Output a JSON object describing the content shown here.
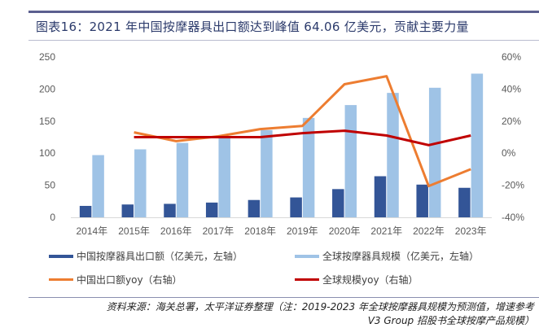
{
  "title": "图表16：2021 年中国按摩器具出口额达到峰值 64.06 亿美元，贡献主要力量",
  "chart_data": {
    "type": "bar+line",
    "title": "图表16：2021 年中国按摩器具出口额达到峰值 64.06 亿美元，贡献主要力量",
    "categories": [
      "2014年",
      "2015年",
      "2016年",
      "2017年",
      "2018年",
      "2019年",
      "2020年",
      "2021年",
      "2022年",
      "2023年"
    ],
    "left_axis": {
      "ylim": [
        0,
        250
      ],
      "ticks": [
        "0",
        "50",
        "100",
        "150",
        "200",
        "250"
      ]
    },
    "right_axis": {
      "ylim": [
        -40,
        60
      ],
      "ticks": [
        "-40%",
        "-20%",
        "0%",
        "20%",
        "40%",
        "60%"
      ]
    },
    "grid": false,
    "legend_placement": "bottom",
    "series": [
      {
        "name": "中国按摩器具出口额（亿美元，左轴）",
        "type": "bar",
        "axis": "left",
        "color": "#335597",
        "values": [
          17.8,
          20,
          21,
          23,
          27,
          31,
          44,
          64.06,
          51,
          46
        ]
      },
      {
        "name": "全球按摩器具规模（亿美元，左轴）",
        "type": "bar",
        "axis": "left",
        "color": "#9fc3e6",
        "values": [
          97,
          106,
          116,
          124,
          136,
          155,
          175,
          194,
          202,
          224
        ]
      },
      {
        "name": "中国出口额yoy（右轴）",
        "type": "line",
        "axis": "right",
        "color": "#ed7d31",
        "values": [
          null,
          13,
          7.5,
          10.5,
          15,
          17,
          43,
          48,
          -20.5,
          -10
        ]
      },
      {
        "name": "全球规模yoy（右轴）",
        "type": "line",
        "axis": "right",
        "color": "#c00000",
        "values": [
          null,
          10,
          10,
          10,
          10,
          12.5,
          14,
          11,
          5,
          11
        ]
      }
    ]
  },
  "source_line1": "资料来源：海关总署，太平洋证券整理（注：2019-2023 年全球按摩器具规模为预测值，增速参考",
  "source_line2": "V3 Group 招股书全球按摩产品规模）"
}
